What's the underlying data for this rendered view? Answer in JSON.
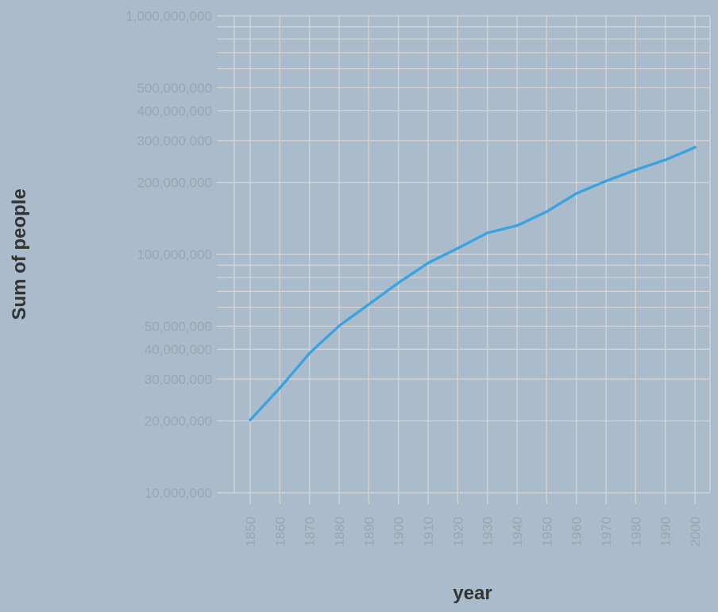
{
  "chart_data": {
    "type": "line",
    "xlabel": "year",
    "ylabel": "Sum of people",
    "y_scale": "log",
    "ylim": [
      10000000,
      1000000000
    ],
    "x_ticks": [
      "1850",
      "1860",
      "1870",
      "1880",
      "1890",
      "1900",
      "1910",
      "1920",
      "1930",
      "1940",
      "1950",
      "1960",
      "1970",
      "1980",
      "1990",
      "2000"
    ],
    "y_ticks": [
      {
        "value": 10000000,
        "label": "10,000,000"
      },
      {
        "value": 20000000,
        "label": "20,000,000"
      },
      {
        "value": 30000000,
        "label": "30,000,000"
      },
      {
        "value": 40000000,
        "label": "40,000,000"
      },
      {
        "value": 50000000,
        "label": "50,000,000"
      },
      {
        "value": 100000000,
        "label": "100,000,000"
      },
      {
        "value": 200000000,
        "label": "200,000,000"
      },
      {
        "value": 300000000,
        "label": "300,000,000"
      },
      {
        "value": 400000000,
        "label": "400,000,000"
      },
      {
        "value": 500000000,
        "label": "500,000,000"
      },
      {
        "value": 1000000000,
        "label": "1,000,000,000"
      }
    ],
    "minor_grid_values": [
      60000000,
      70000000,
      80000000,
      90000000,
      600000000,
      700000000,
      800000000,
      900000000
    ],
    "grid": true,
    "series": [
      {
        "color": "#3aa3e0",
        "x": [
          1850,
          1860,
          1870,
          1880,
          1900,
          1910,
          1920,
          1930,
          1940,
          1950,
          1960,
          1970,
          1980,
          1990,
          2000
        ],
        "values": [
          20200000,
          27500000,
          38500000,
          50100000,
          76000000,
          92000000,
          106000000,
          123000000,
          132000000,
          151000000,
          180000000,
          203000000,
          226000000,
          249000000,
          281000000
        ]
      }
    ]
  }
}
